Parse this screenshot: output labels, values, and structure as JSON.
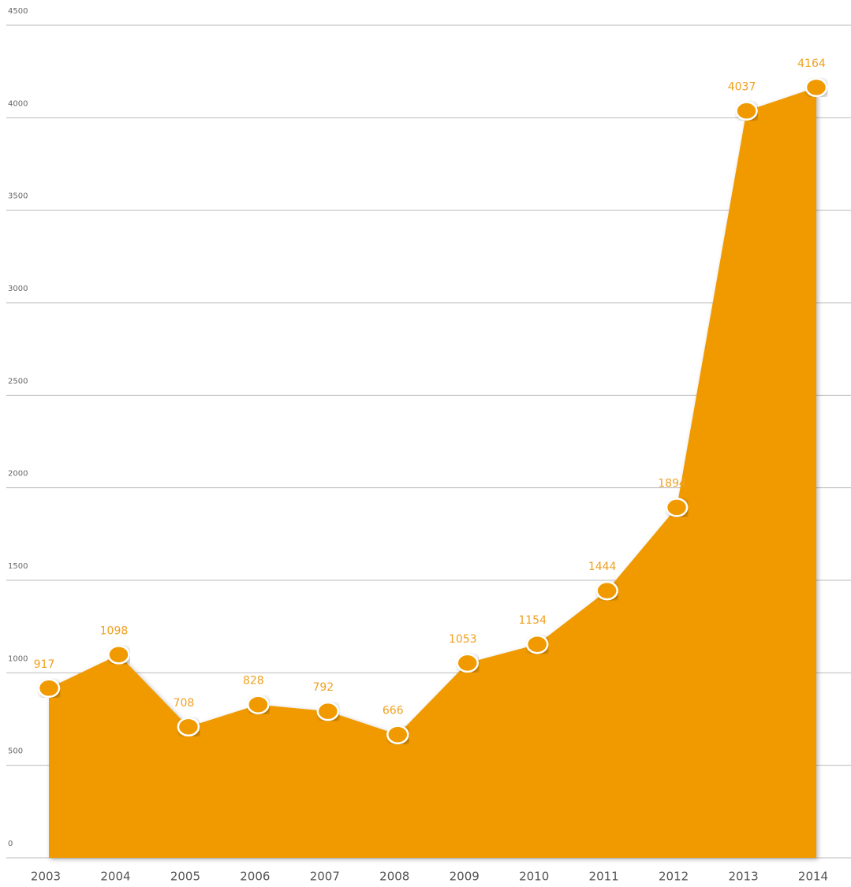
{
  "chart_data": {
    "type": "area",
    "categories": [
      "2003",
      "2004",
      "2005",
      "2006",
      "2007",
      "2008",
      "2009",
      "2010",
      "2011",
      "2012",
      "2013",
      "2014"
    ],
    "values": [
      917,
      1098,
      708,
      828,
      792,
      666,
      1053,
      1154,
      1444,
      1894,
      4037,
      4164
    ],
    "color": "#f09a00",
    "ylim": [
      0,
      4500
    ],
    "yticks": [
      0,
      500,
      1000,
      1500,
      2000,
      2500,
      3000,
      3500,
      4000,
      4500
    ],
    "grid": true
  }
}
